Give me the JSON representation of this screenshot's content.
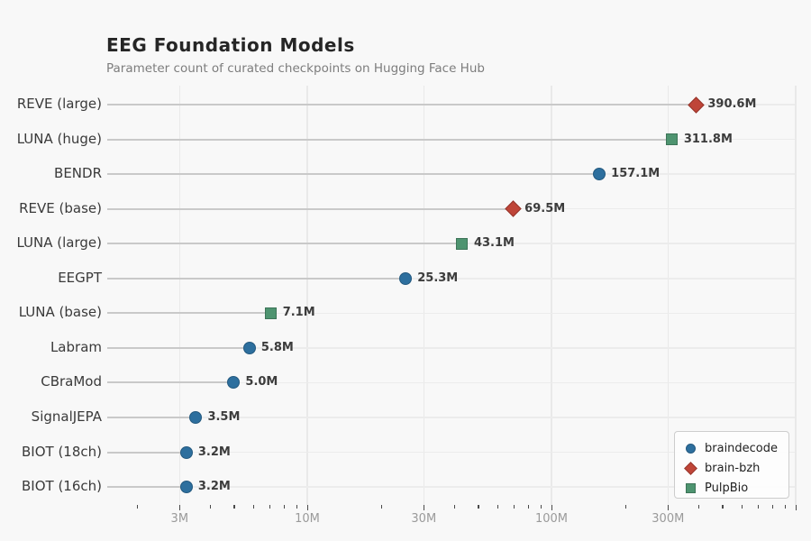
{
  "header": {
    "title": "EEG Foundation Models",
    "subtitle": "Parameter count of curated checkpoints on Hugging Face Hub"
  },
  "chart_data": {
    "type": "scatter",
    "variant": "lollipop-dot-plot",
    "title": "EEG Foundation Models",
    "subtitle": "Parameter count of curated checkpoints on Hugging Face Hub",
    "xscale": "log",
    "xlabel": "",
    "ylabel": "",
    "xlim_millions": [
      1.5,
      1050
    ],
    "grid": true,
    "unit": "parameters (millions)",
    "groups": {
      "braindecode": {
        "marker": "circle",
        "color": "#2d6f9e",
        "edge": "#24597f"
      },
      "brain-bzh": {
        "marker": "diamond",
        "color": "#bf4538",
        "edge": "#96352b"
      },
      "PulpBio": {
        "marker": "square",
        "color": "#4e9470",
        "edge": "#3d7458"
      }
    },
    "points": [
      {
        "label": "REVE (large)",
        "value_label": "390.6M",
        "value_m": 390.6,
        "group": "brain-bzh"
      },
      {
        "label": "LUNA (huge)",
        "value_label": "311.8M",
        "value_m": 311.8,
        "group": "PulpBio"
      },
      {
        "label": "BENDR",
        "value_label": "157.1M",
        "value_m": 157.1,
        "group": "braindecode"
      },
      {
        "label": "REVE (base)",
        "value_label": "69.5M",
        "value_m": 69.5,
        "group": "brain-bzh"
      },
      {
        "label": "LUNA (large)",
        "value_label": "43.1M",
        "value_m": 43.1,
        "group": "PulpBio"
      },
      {
        "label": "EEGPT",
        "value_label": "25.3M",
        "value_m": 25.3,
        "group": "braindecode"
      },
      {
        "label": "LUNA (base)",
        "value_label": "7.1M",
        "value_m": 7.1,
        "group": "PulpBio"
      },
      {
        "label": "Labram",
        "value_label": "5.8M",
        "value_m": 5.8,
        "group": "braindecode"
      },
      {
        "label": "CBraMod",
        "value_label": "5.0M",
        "value_m": 5.0,
        "group": "braindecode"
      },
      {
        "label": "SignalJEPA",
        "value_label": "3.5M",
        "value_m": 3.5,
        "group": "braindecode"
      },
      {
        "label": "BIOT (18ch)",
        "value_label": "3.2M",
        "value_m": 3.2,
        "group": "braindecode"
      },
      {
        "label": "BIOT (16ch)",
        "value_label": "3.2M",
        "value_m": 3.2,
        "group": "braindecode"
      }
    ],
    "x_major_ticks": [
      {
        "value_m": 3,
        "label": "3M"
      },
      {
        "value_m": 10,
        "label": "10M"
      },
      {
        "value_m": 30,
        "label": "30M"
      },
      {
        "value_m": 100,
        "label": "100M"
      },
      {
        "value_m": 300,
        "label": "300M"
      },
      {
        "value_m": 1000,
        "label": ""
      }
    ],
    "x_minor_ticks_m": [
      2,
      4,
      5,
      6,
      7,
      8,
      9,
      20,
      40,
      50,
      60,
      70,
      80,
      90,
      200,
      400,
      500,
      600,
      700,
      800,
      900
    ],
    "legend_position": "lower right"
  },
  "legend": {
    "items": [
      {
        "label": "braindecode",
        "marker": "circle",
        "color": "#2d6f9e",
        "edge": "#24597f"
      },
      {
        "label": "brain-bzh",
        "marker": "diamond",
        "color": "#bf4538",
        "edge": "#96352b"
      },
      {
        "label": "PulpBio",
        "marker": "square",
        "color": "#4e9470",
        "edge": "#3d7458"
      }
    ]
  },
  "colors": {
    "background": "#f8f8f8",
    "grid": "#e9e9e9",
    "stem": "#c9c9c9",
    "title_text": "#262626",
    "subtitle_text": "#7d7d7d",
    "tick_label_text": "#9a9a9a",
    "value_label_text": "#3c3c3c"
  }
}
